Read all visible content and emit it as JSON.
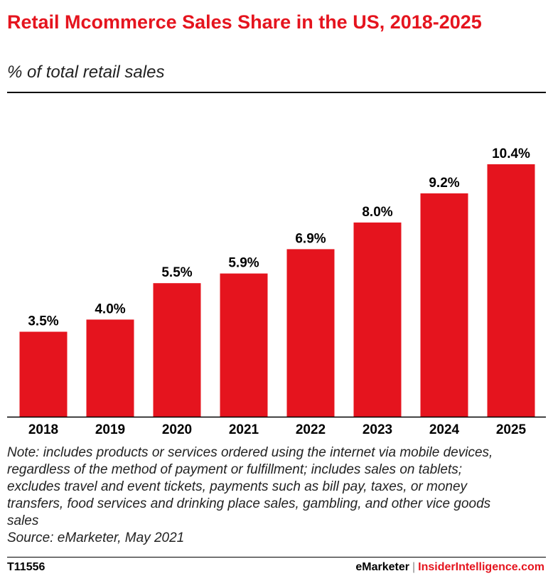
{
  "header": {
    "title": "Retail Mcommerce Sales Share in the US, 2018-2025",
    "subtitle": "% of total retail sales"
  },
  "colors": {
    "bar": "#e5141e",
    "title": "#e5141e",
    "axis": "#000000"
  },
  "chart_data": {
    "type": "bar",
    "title": "Retail Mcommerce Sales Share in the US, 2018-2025",
    "subtitle": "% of total retail sales",
    "categories": [
      "2018",
      "2019",
      "2020",
      "2021",
      "2022",
      "2023",
      "2024",
      "2025"
    ],
    "values": [
      3.5,
      4.0,
      5.5,
      5.9,
      6.9,
      8.0,
      9.2,
      10.4
    ],
    "value_labels": [
      "3.5%",
      "4.0%",
      "5.5%",
      "5.9%",
      "6.9%",
      "8.0%",
      "9.2%",
      "10.4%"
    ],
    "ylim": [
      0,
      11.6
    ],
    "grid": false,
    "xlabel": "",
    "ylabel": ""
  },
  "footer": {
    "note_lines": [
      "Note: includes products or services ordered using the internet via mobile devices,",
      "regardless of the method of payment or fulfillment; includes sales on tablets;",
      "excludes travel and event tickets, payments such as bill pay, taxes, or money",
      "transfers, food services and drinking place sales, gambling, and other vice goods",
      "sales"
    ],
    "source": "Source: eMarketer, May 2021",
    "code": "T11556",
    "brand_left": "eMarketer",
    "brand_sep": "|",
    "brand_right": "InsiderIntelligence.com"
  }
}
